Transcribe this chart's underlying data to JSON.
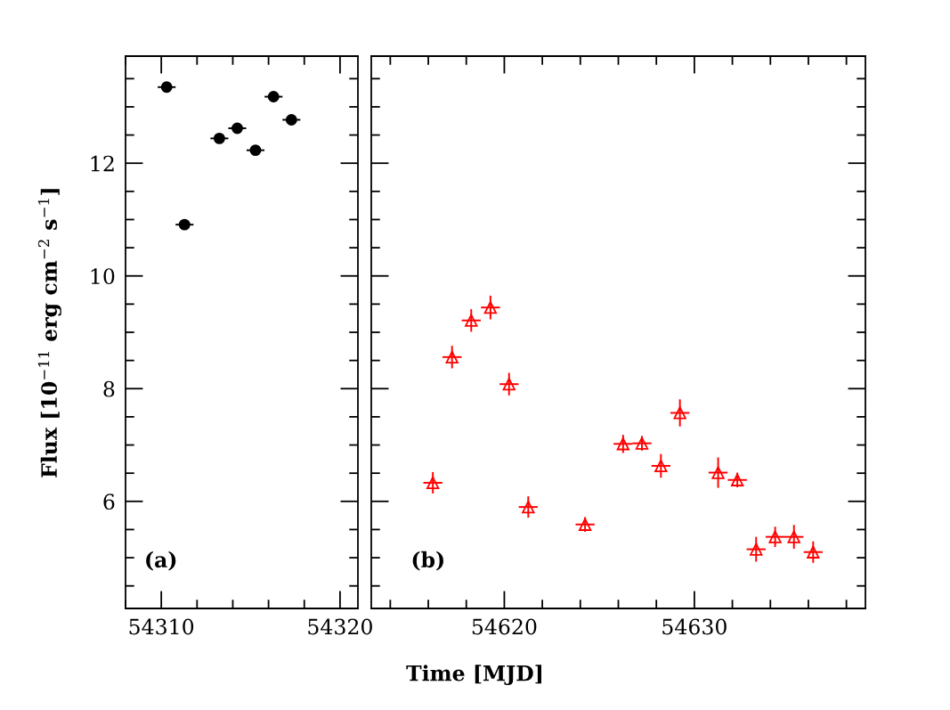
{
  "chart_data": [
    {
      "type": "scatter",
      "ylabel": "Flux [10$^{−11}$ erg cm$^{−2}$ s$^{−1}$]",
      "xlabel": "Time [MJD]",
      "annotations": [
        "(a)"
      ],
      "marker": "circle",
      "xlim": [
        54308,
        54321
      ],
      "ylim": [
        4.1,
        13.9
      ],
      "xticks": [
        {
          "value": 54308,
          "label": null
        },
        54310,
        {
          "value": 54312,
          "label": null
        },
        {
          "value": 54314,
          "label": null
        },
        {
          "value": 54316,
          "label": null
        },
        {
          "value": 54318,
          "label": null
        },
        54320
      ],
      "yticks": [
        {
          "value": 4.5,
          "label": null
        },
        {
          "value": 5,
          "label": null
        },
        {
          "value": 5.5,
          "label": null
        },
        6,
        {
          "value": 6.5,
          "label": null
        },
        {
          "value": 7,
          "label": null
        },
        {
          "value": 7.5,
          "label": null
        },
        8,
        {
          "value": 8.5,
          "label": null
        },
        {
          "value": 9,
          "label": null
        },
        {
          "value": 9.5,
          "label": null
        },
        10,
        {
          "value": 10.5,
          "label": null
        },
        {
          "value": 11,
          "label": null
        },
        {
          "value": 11.5,
          "label": null
        },
        12,
        {
          "value": 12.5,
          "label": null
        },
        {
          "value": 13,
          "label": null
        },
        {
          "value": 13.5,
          "label": null
        }
      ],
      "series": [
        {
          "color": "#000000",
          "x": [
            54310.3,
            54311.3,
            54313.25,
            54314.25,
            54315.27,
            54316.28,
            54317.28
          ],
          "values": [
            13.35,
            10.91,
            12.44,
            12.62,
            12.23,
            13.18,
            12.77
          ],
          "errors": [
            0.05,
            0.04,
            0.07,
            0.05,
            0.07,
            0.05,
            0.08
          ],
          "xerrors": [
            0.5,
            0.5,
            0.5,
            0.5,
            0.5,
            0.5,
            0.5
          ]
        }
      ]
    },
    {
      "type": "scatter",
      "annotations": [
        "(b)"
      ],
      "marker": "triangle",
      "tick_labels": "x",
      "xlim": [
        54613,
        54639
      ],
      "ylim": [
        4.1,
        13.9
      ],
      "xticks": [
        {
          "value": 54614,
          "label": null
        },
        {
          "value": 54616,
          "label": null
        },
        {
          "value": 54618,
          "label": null
        },
        54620,
        {
          "value": 54622,
          "label": null
        },
        {
          "value": 54624,
          "label": null
        },
        {
          "value": 54626,
          "label": null
        },
        {
          "value": 54628,
          "label": null
        },
        54630,
        {
          "value": 54632,
          "label": null
        },
        {
          "value": 54634,
          "label": null
        },
        {
          "value": 54636,
          "label": null
        },
        {
          "value": 54638,
          "label": null
        }
      ],
      "yticks": [
        {
          "value": 4.5,
          "label": null
        },
        {
          "value": 5,
          "label": null
        },
        {
          "value": 5.5,
          "label": null
        },
        6,
        {
          "value": 6.5,
          "label": null
        },
        {
          "value": 7,
          "label": null
        },
        {
          "value": 7.5,
          "label": null
        },
        8,
        {
          "value": 8.5,
          "label": null
        },
        {
          "value": 9,
          "label": null
        },
        {
          "value": 9.5,
          "label": null
        },
        10,
        {
          "value": 10.5,
          "label": null
        },
        {
          "value": 11,
          "label": null
        },
        {
          "value": 11.5,
          "label": null
        },
        12,
        {
          "value": 12.5,
          "label": null
        },
        {
          "value": 13,
          "label": null
        },
        {
          "value": 13.5,
          "label": null
        }
      ],
      "series": [
        {
          "color": "#ff0000",
          "x": [
            54616.24,
            54617.25,
            54618.26,
            54619.27,
            54620.25,
            54621.26,
            54624.25,
            54626.25,
            54627.24,
            54628.24,
            54629.24,
            54631.25,
            54632.26,
            54633.25,
            54634.25,
            54635.24,
            54636.25
          ],
          "values": [
            6.33,
            8.56,
            9.21,
            9.44,
            8.08,
            5.9,
            5.59,
            7.02,
            7.03,
            6.63,
            7.57,
            6.51,
            6.38,
            5.15,
            5.37,
            5.37,
            5.1
          ],
          "errors": [
            0.19,
            0.2,
            0.2,
            0.21,
            0.2,
            0.19,
            0.13,
            0.16,
            0.13,
            0.21,
            0.24,
            0.27,
            0.13,
            0.22,
            0.18,
            0.21,
            0.19
          ],
          "xerrors": [
            0.5,
            0.5,
            0.5,
            0.5,
            0.5,
            0.5,
            0.5,
            0.5,
            0.5,
            0.5,
            0.5,
            0.5,
            0.5,
            0.5,
            0.5,
            0.5,
            0.5
          ]
        }
      ]
    }
  ]
}
